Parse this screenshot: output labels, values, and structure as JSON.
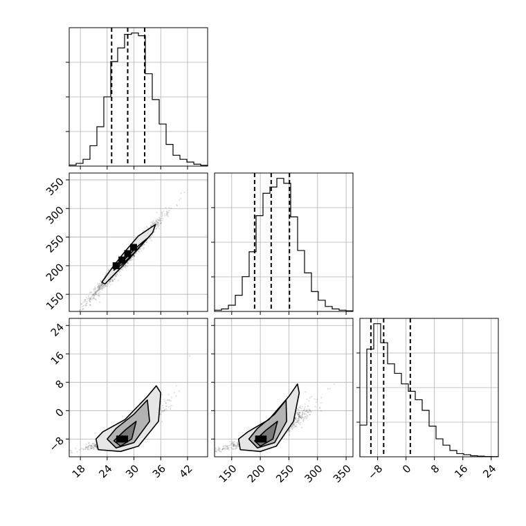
{
  "chart_data": {
    "type": "corner",
    "grid": true,
    "parameters": [
      {
        "ticks": [
          18,
          24,
          30,
          36,
          42
        ],
        "range": [
          15.5,
          46.5
        ],
        "hist_edges_start": 15.5,
        "hist_bin_width": 1.55,
        "hist_counts": [
          0.8,
          2,
          5,
          15,
          29,
          51,
          77,
          87,
          97,
          98,
          96,
          68,
          49,
          31,
          16,
          8,
          5,
          3,
          1.4,
          0.6
        ],
        "quantiles": [
          25.0,
          28.6,
          32.4
        ]
      },
      {
        "ticks": [
          150,
          200,
          250,
          300,
          350
        ],
        "range": [
          120,
          362
        ],
        "hist_edges_start": 120,
        "hist_bin_width": 12.1,
        "hist_counts": [
          1,
          2,
          5,
          13,
          28,
          48,
          77,
          95,
          100,
          107,
          103,
          76,
          49,
          31,
          16,
          9,
          4,
          2,
          1,
          0.5
        ],
        "quantiles": [
          190,
          219,
          251
        ]
      },
      {
        "ticks": [
          -8,
          0,
          8,
          16,
          24
        ],
        "range": [
          -13,
          26
        ],
        "hist_edges_start": -13,
        "hist_bin_width": 1.95,
        "hist_counts": [
          30,
          102,
          126,
          108,
          88,
          79,
          69,
          62,
          54,
          44,
          29,
          17,
          11,
          6,
          3,
          2,
          1,
          0.6,
          0.3,
          0.2
        ],
        "quantiles": [
          -9.9,
          -6.3,
          1.2
        ]
      }
    ],
    "pairs": [
      {
        "x_param": 0,
        "y_param": 1,
        "scatter_center": [
          28.5,
          215
        ],
        "scatter_sd": [
          4.0,
          35
        ],
        "correlation": 0.985,
        "contours": [
          [
            [
              22.8,
              171
            ],
            [
              25,
              195
            ],
            [
              28,
              225
            ],
            [
              31,
              252
            ],
            [
              34.8,
              272
            ],
            [
              34.2,
              258
            ],
            [
              31,
              230
            ],
            [
              28,
              204
            ],
            [
              25,
              180
            ],
            [
              23.5,
              168
            ]
          ],
          [
            [
              25.5,
              192
            ],
            [
              28,
              212
            ],
            [
              31,
              235
            ],
            [
              33,
              248
            ],
            [
              30.5,
              226
            ],
            [
              27.5,
              203
            ]
          ]
        ],
        "dense_cells": [
          [
            26,
            200
          ],
          [
            27.3,
            210
          ],
          [
            28.6,
            221
          ],
          [
            29.9,
            232
          ]
        ]
      },
      {
        "x_param": 0,
        "y_param": 2,
        "scatter_center": [
          28,
          -5
        ],
        "scatter_sd": [
          4.0,
          5.5
        ],
        "correlation": 0.8,
        "contours": [
          [
            [
              21.5,
              -8
            ],
            [
              23,
              -6
            ],
            [
              28,
              -2.5
            ],
            [
              33,
              4
            ],
            [
              35,
              7
            ],
            [
              36,
              5
            ],
            [
              35.5,
              -3
            ],
            [
              31,
              -10
            ],
            [
              27,
              -11.5
            ],
            [
              22,
              -11
            ]
          ],
          [
            [
              24,
              -8
            ],
            [
              26,
              -5
            ],
            [
              30,
              -1
            ],
            [
              33,
              3
            ],
            [
              33.5,
              -3
            ],
            [
              30,
              -9
            ],
            [
              26,
              -10.5
            ]
          ],
          [
            [
              25.5,
              -8.5
            ],
            [
              28,
              -5.5
            ],
            [
              30.5,
              -3
            ],
            [
              29.5,
              -8
            ],
            [
              27,
              -10
            ]
          ]
        ],
        "dense_cells": [
          [
            26.8,
            -8
          ],
          [
            27.9,
            -8
          ]
        ]
      },
      {
        "x_param": 1,
        "y_param": 2,
        "scatter_center": [
          215,
          -5
        ],
        "scatter_sd": [
          35,
          5.5
        ],
        "correlation": 0.82,
        "contours": [
          [
            [
              162,
              -8
            ],
            [
              178,
              -6
            ],
            [
              215,
              -2.5
            ],
            [
              250,
              4
            ],
            [
              265,
              7.5
            ],
            [
              268,
              5
            ],
            [
              258,
              -3
            ],
            [
              228,
              -10
            ],
            [
              200,
              -11.5
            ],
            [
              165,
              -11
            ]
          ],
          [
            [
              180,
              -8
            ],
            [
              195,
              -5
            ],
            [
              225,
              -1
            ],
            [
              245,
              3
            ],
            [
              246,
              -3
            ],
            [
              225,
              -9
            ],
            [
              195,
              -10.5
            ]
          ],
          [
            [
              190,
              -8.5
            ],
            [
              210,
              -5.5
            ],
            [
              230,
              -3
            ],
            [
              222,
              -8
            ],
            [
              200,
              -10
            ]
          ]
        ],
        "dense_cells": [
          [
            197,
            -8
          ],
          [
            205,
            -8
          ]
        ]
      }
    ]
  }
}
